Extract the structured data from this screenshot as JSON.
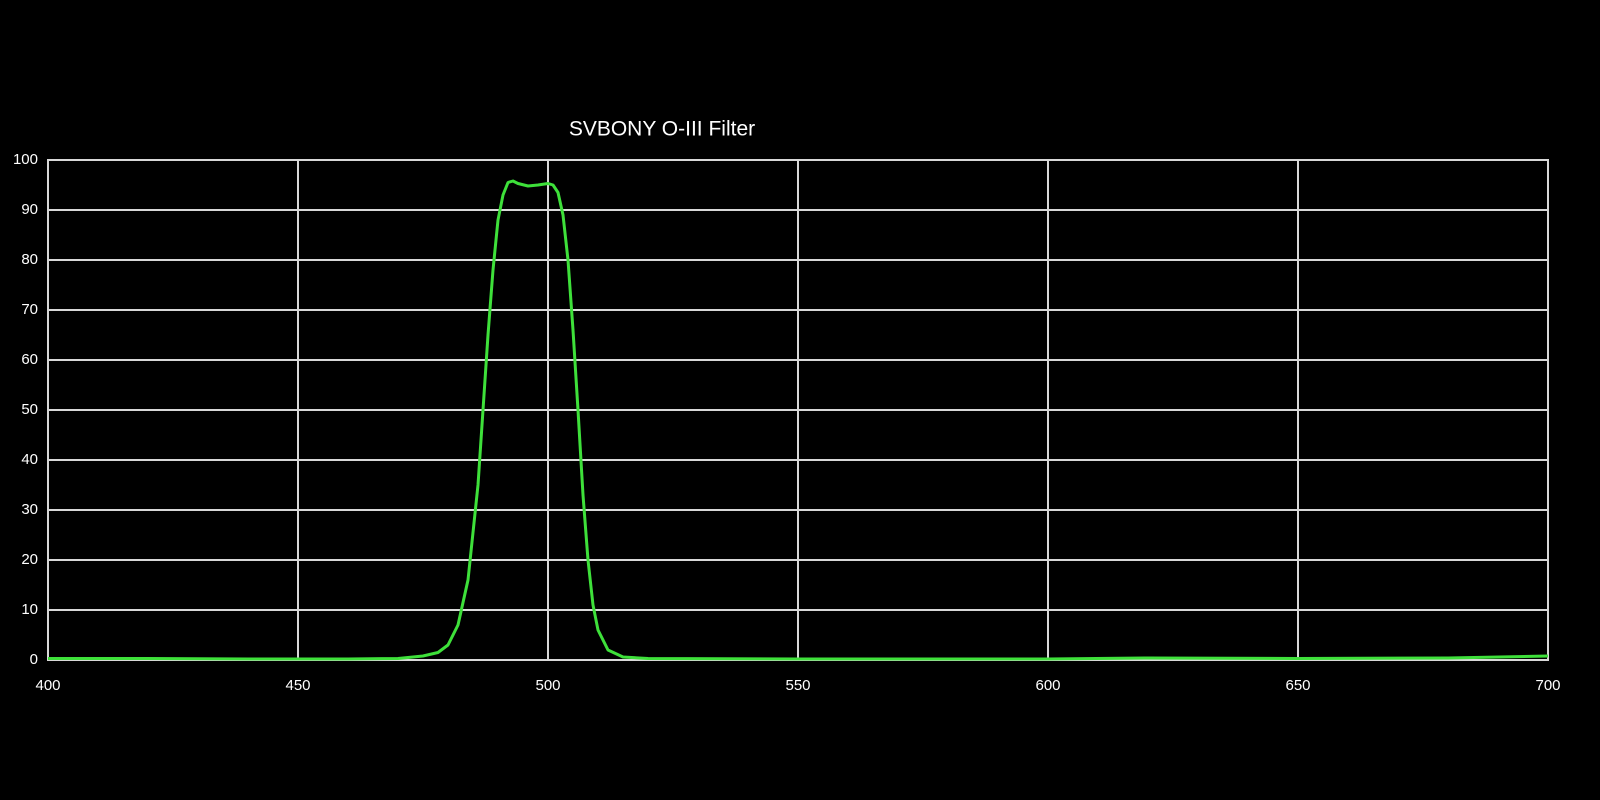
{
  "chart_data": {
    "type": "line",
    "title": "SVBONY O-III Filter",
    "series": [
      {
        "color": "#3ee03a",
        "x": [
          400,
          420,
          440,
          460,
          470,
          475,
          478,
          480,
          482,
          484,
          486,
          487,
          488,
          489,
          490,
          491,
          492,
          493,
          494,
          496,
          498,
          500,
          501,
          502,
          503,
          504,
          505,
          506,
          507,
          508,
          509,
          510,
          512,
          515,
          520,
          550,
          600,
          620,
          650,
          680,
          700
        ],
        "values": [
          0.3,
          0.3,
          0.2,
          0.2,
          0.3,
          0.8,
          1.5,
          3,
          7,
          16,
          35,
          50,
          65,
          78,
          88,
          93,
          95.5,
          95.8,
          95.3,
          94.8,
          95,
          95.3,
          95,
          93.5,
          89,
          80,
          66,
          50,
          33,
          20,
          11,
          6,
          2,
          0.6,
          0.3,
          0.2,
          0.2,
          0.4,
          0.3,
          0.4,
          0.8
        ]
      }
    ],
    "xlim": [
      400,
      700
    ],
    "xticks": [
      400,
      450,
      500,
      550,
      600,
      650,
      700
    ],
    "ylim": [
      0,
      100
    ],
    "yticks": [
      0,
      10,
      20,
      30,
      40,
      50,
      60,
      70,
      80,
      90,
      100
    ],
    "grid": true
  }
}
